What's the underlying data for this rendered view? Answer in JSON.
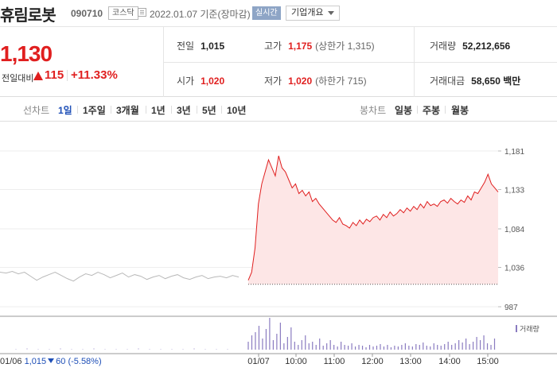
{
  "header": {
    "stock_name": "휴림로봇",
    "stock_code": "090710",
    "market": "코스닥",
    "date_text": "2022.01.07 기준(장마감)",
    "realtime_label": "실시간",
    "company_overview_label": "기업개요"
  },
  "summary": {
    "price": "1,130",
    "prev_diff_label": "전일대비",
    "diff": "115",
    "rate": "+11.33%",
    "prev_close_label": "전일",
    "prev_close": "1,015",
    "open_label": "시가",
    "open": "1,020",
    "high_label": "고가",
    "high": "1,175",
    "upper_limit": "(상한가 1,315)",
    "low_label": "저가",
    "low": "1,020",
    "lower_limit": "(하한가 715)",
    "volume_label": "거래량",
    "volume": "52,212,656",
    "amount_label": "거래대금",
    "amount": "58,650 백만"
  },
  "period_tabs": {
    "line_chart_label": "선차트",
    "items": [
      "1일",
      "1주일",
      "3개월",
      "1년",
      "3년",
      "5년",
      "10년"
    ],
    "selected": "1일",
    "candle_chart_label": "봉차트",
    "candle_items": [
      "일봉",
      "주봉",
      "월봉"
    ]
  },
  "chart_data": {
    "type": "line",
    "y_ticks": [
      "1,181",
      "1,133",
      "1,084",
      "1,036",
      "987"
    ],
    "x_labels": [
      "01/06",
      "01/07",
      "10:00",
      "11:00",
      "12:00",
      "13:00",
      "14:00",
      "15:00"
    ],
    "ylim": [
      987,
      1181
    ],
    "prev_close_ref": 1015,
    "series": [
      {
        "period": "01/06",
        "color": "#b9b9b9",
        "values": [
          1030,
          1029,
          1031,
          1028,
          1030,
          1025,
          1020,
          1024,
          1027,
          1030,
          1026,
          1022,
          1019,
          1024,
          1028,
          1026,
          1030,
          1027,
          1023,
          1026,
          1029,
          1024,
          1027,
          1025,
          1021,
          1024,
          1026,
          1022,
          1025,
          1027,
          1023,
          1021,
          1024,
          1026,
          1022,
          1024,
          1025,
          1023,
          1026,
          1024
        ]
      },
      {
        "period": "01/07",
        "color": "#e01f1f",
        "fill": "#fde6e6",
        "values": [
          1020,
          1030,
          1060,
          1115,
          1140,
          1155,
          1170,
          1160,
          1150,
          1175,
          1160,
          1155,
          1145,
          1135,
          1140,
          1128,
          1132,
          1125,
          1130,
          1118,
          1122,
          1115,
          1110,
          1105,
          1100,
          1095,
          1092,
          1098,
          1090,
          1088,
          1085,
          1092,
          1088,
          1095,
          1090,
          1096,
          1093,
          1098,
          1100,
          1095,
          1102,
          1098,
          1105,
          1100,
          1103,
          1108,
          1104,
          1110,
          1106,
          1112,
          1108,
          1115,
          1110,
          1118,
          1113,
          1115,
          1112,
          1118,
          1120,
          1116,
          1122,
          1118,
          1115,
          1120,
          1117,
          1125,
          1120,
          1130,
          1128,
          1135,
          1142,
          1152,
          1140,
          1135,
          1130
        ]
      }
    ],
    "volume": {
      "legend": "거래량",
      "color": "#8a7bc0",
      "prev_values": [
        1,
        2,
        1,
        1,
        2,
        1,
        1,
        2,
        1,
        1,
        1,
        2,
        1,
        1,
        1,
        1,
        2,
        1,
        1,
        1
      ],
      "values": [
        10,
        18,
        22,
        30,
        14,
        26,
        40,
        12,
        20,
        34,
        8,
        16,
        28,
        10,
        6,
        12,
        18,
        8,
        10,
        6,
        14,
        5,
        8,
        12,
        6,
        4,
        10,
        6,
        5,
        8,
        4,
        6,
        5,
        3,
        6,
        4,
        5,
        7,
        4,
        6,
        3,
        5,
        4,
        6,
        8,
        5,
        4,
        7,
        6,
        9,
        5,
        4,
        8,
        6,
        5,
        7,
        10,
        6,
        8,
        12,
        9,
        14,
        7,
        10,
        16,
        12,
        18,
        8,
        6,
        14
      ]
    },
    "prev_day_label": "01/06",
    "prev_day_price": "1,015",
    "prev_day_change": "60",
    "prev_day_rate": "(-5.58%)"
  },
  "colors": {
    "up": "#e01f1f",
    "down": "#1e4fb7",
    "accent_button": "#8ea5c6"
  }
}
